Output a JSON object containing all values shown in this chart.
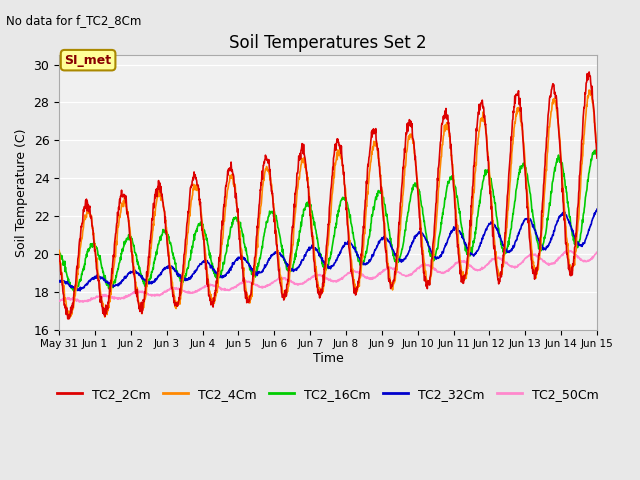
{
  "title": "Soil Temperatures Set 2",
  "subtitle": "No data for f_TC2_8Cm",
  "ylabel": "Soil Temperature (C)",
  "xlabel": "Time",
  "ylim": [
    16,
    30.5
  ],
  "yticks": [
    16,
    18,
    20,
    22,
    24,
    26,
    28,
    30
  ],
  "x_tick_labels": [
    "May 31",
    "Jun 1",
    "Jun 2",
    "Jun 3",
    "Jun 4",
    "Jun 5",
    "Jun 6",
    "Jun 7",
    "Jun 8",
    "Jun 9",
    "Jun 10",
    "Jun 11",
    "Jun 12",
    "Jun 13",
    "Jun 14",
    "Jun 15"
  ],
  "legend_labels": [
    "TC2_2Cm",
    "TC2_4Cm",
    "TC2_16Cm",
    "TC2_32Cm",
    "TC2_50Cm"
  ],
  "line_colors": [
    "#dd0000",
    "#ff8800",
    "#00cc00",
    "#0000cc",
    "#ff88cc"
  ],
  "bg_color": "#e8e8e8",
  "plot_bg_color": "#f0f0f0",
  "annotation_text": "SI_met",
  "annotation_bg": "#ffff99",
  "annotation_border": "#aa8800"
}
